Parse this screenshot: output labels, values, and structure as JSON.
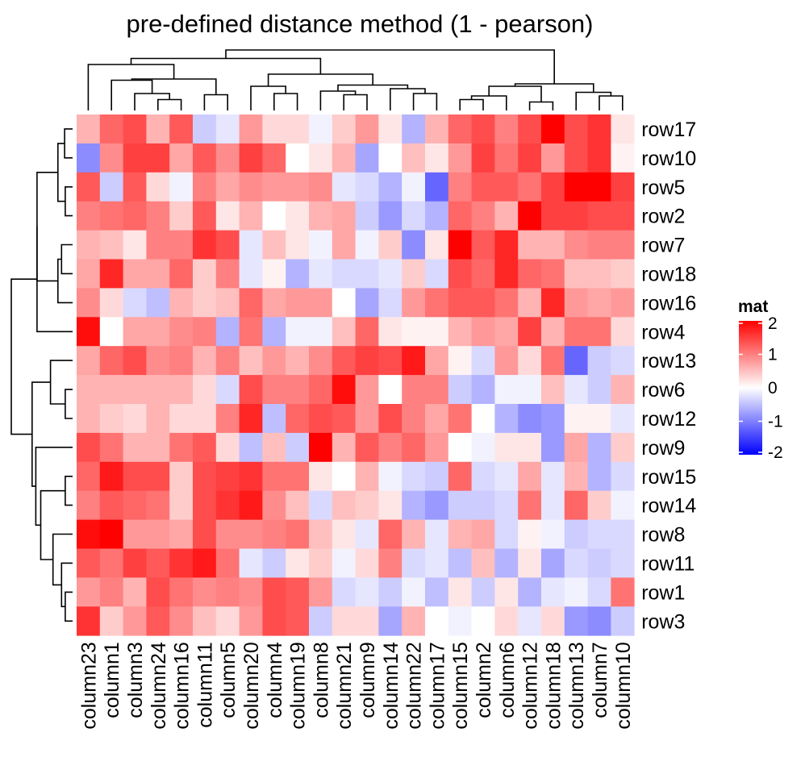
{
  "chart_data": {
    "type": "heatmap",
    "title": "pre-defined distance method (1 - pearson)",
    "rows": [
      "row17",
      "row10",
      "row5",
      "row2",
      "row7",
      "row18",
      "row16",
      "row4",
      "row13",
      "row6",
      "row12",
      "row9",
      "row15",
      "row14",
      "row8",
      "row11",
      "row1",
      "row3"
    ],
    "columns": [
      "column23",
      "column1",
      "column3",
      "column24",
      "column16",
      "column11",
      "column5",
      "column20",
      "column4",
      "column19",
      "column8",
      "column21",
      "column9",
      "column14",
      "column22",
      "column17",
      "column15",
      "column2",
      "column6",
      "column12",
      "column18",
      "column13",
      "column7",
      "column10"
    ],
    "values": [
      [
        0.6,
        1.2,
        1.4,
        0.6,
        1.3,
        -0.4,
        -0.2,
        0.8,
        0.3,
        0.3,
        -0.1,
        0.4,
        0.8,
        0.2,
        -0.6,
        0.6,
        1.2,
        1.4,
        1.0,
        1.4,
        2.0,
        1.4,
        1.6,
        0.2
      ],
      [
        -0.9,
        0.9,
        1.5,
        1.5,
        0.7,
        1.3,
        0.9,
        1.5,
        1.2,
        0.0,
        0.2,
        0.6,
        -0.7,
        0.0,
        0.5,
        0.2,
        0.8,
        1.5,
        1.1,
        1.5,
        0.8,
        1.4,
        1.6,
        0.1
      ],
      [
        1.3,
        -0.4,
        1.3,
        0.3,
        -0.1,
        1.0,
        0.7,
        0.9,
        0.8,
        0.8,
        0.9,
        -0.2,
        -0.3,
        -0.6,
        -0.1,
        -1.2,
        1.0,
        1.3,
        1.3,
        1.1,
        1.5,
        2.0,
        2.0,
        1.5
      ],
      [
        1.0,
        1.1,
        1.2,
        1.0,
        0.4,
        1.3,
        0.2,
        0.6,
        0.0,
        0.2,
        0.6,
        0.7,
        -0.4,
        -0.8,
        -0.3,
        -0.6,
        1.2,
        1.0,
        0.6,
        2.0,
        1.5,
        1.5,
        1.4,
        1.4
      ],
      [
        0.6,
        0.5,
        0.2,
        1.0,
        1.0,
        1.6,
        1.4,
        -0.2,
        0.5,
        0.2,
        -0.1,
        0.7,
        -0.1,
        0.4,
        -0.9,
        0.2,
        2.1,
        1.3,
        1.7,
        0.6,
        0.6,
        0.9,
        1.0,
        1.0
      ],
      [
        0.7,
        1.7,
        0.7,
        0.7,
        1.2,
        0.4,
        1.0,
        -0.2,
        0.1,
        -0.6,
        -0.2,
        -0.3,
        -0.3,
        -0.2,
        0.4,
        -0.3,
        1.4,
        1.2,
        1.7,
        1.2,
        1.1,
        0.5,
        0.5,
        0.4
      ],
      [
        0.9,
        0.3,
        -0.3,
        -0.5,
        0.6,
        0.4,
        0.5,
        1.2,
        0.7,
        0.8,
        0.8,
        0.0,
        -0.7,
        -0.3,
        0.8,
        1.1,
        1.3,
        1.3,
        1.1,
        0.6,
        1.7,
        0.8,
        0.7,
        0.8
      ],
      [
        1.9,
        0.0,
        0.7,
        0.7,
        0.9,
        1.0,
        -0.6,
        1.1,
        -0.6,
        -0.1,
        -0.1,
        0.5,
        1.2,
        0.2,
        0.1,
        0.1,
        0.6,
        0.8,
        0.7,
        1.5,
        0.6,
        1.1,
        1.1,
        0.3
      ],
      [
        0.7,
        1.2,
        1.4,
        0.9,
        1.0,
        0.6,
        1.0,
        0.5,
        0.8,
        0.6,
        0.9,
        1.3,
        1.5,
        1.4,
        1.8,
        0.7,
        0.1,
        -0.3,
        0.8,
        0.3,
        1.1,
        -1.2,
        -0.4,
        -0.3
      ],
      [
        0.6,
        0.6,
        0.6,
        0.6,
        0.6,
        0.3,
        -0.3,
        1.4,
        1.0,
        1.0,
        1.2,
        1.9,
        0.8,
        0.0,
        1.0,
        1.0,
        -0.4,
        -0.6,
        -0.1,
        -0.1,
        0.5,
        -0.2,
        -0.4,
        0.6
      ],
      [
        0.6,
        0.4,
        0.3,
        0.6,
        0.3,
        0.3,
        1.0,
        1.7,
        -0.5,
        1.2,
        1.4,
        1.3,
        0.8,
        1.4,
        1.0,
        0.7,
        1.1,
        0.0,
        -0.6,
        -0.9,
        -0.8,
        0.1,
        0.1,
        -0.2
      ],
      [
        1.4,
        1.1,
        0.6,
        0.6,
        1.1,
        1.3,
        0.3,
        -0.5,
        0.5,
        -0.4,
        2.0,
        0.6,
        1.3,
        1.0,
        1.2,
        0.8,
        0.0,
        -0.1,
        0.2,
        0.2,
        -0.8,
        0.7,
        -0.6,
        0.4
      ],
      [
        1.2,
        1.8,
        1.4,
        1.4,
        0.4,
        1.4,
        1.5,
        1.6,
        1.1,
        1.1,
        0.2,
        0.0,
        0.6,
        -0.1,
        -0.3,
        -0.4,
        1.2,
        -0.3,
        -0.2,
        0.7,
        -0.2,
        0.6,
        -0.6,
        -0.3
      ],
      [
        1.0,
        1.3,
        1.2,
        1.1,
        0.4,
        1.4,
        1.6,
        1.8,
        0.9,
        0.5,
        -0.3,
        0.5,
        0.4,
        0.2,
        -0.6,
        -0.8,
        -0.4,
        -0.4,
        -0.3,
        1.1,
        -0.2,
        1.2,
        0.4,
        -0.1
      ],
      [
        1.9,
        2.1,
        0.8,
        0.8,
        0.7,
        1.4,
        0.9,
        0.9,
        1.0,
        1.1,
        0.5,
        0.2,
        -0.2,
        1.2,
        0.6,
        -0.2,
        0.6,
        0.7,
        -0.3,
        0.1,
        -0.1,
        -0.4,
        -0.3,
        -0.3
      ],
      [
        1.3,
        1.1,
        1.5,
        1.3,
        1.6,
        1.8,
        1.1,
        -0.2,
        -0.4,
        0.2,
        0.4,
        -0.1,
        0.3,
        1.0,
        -0.3,
        -0.2,
        -0.5,
        0.5,
        -0.6,
        0.2,
        -0.7,
        -0.3,
        -0.4,
        -0.3
      ],
      [
        0.8,
        1.0,
        0.6,
        1.4,
        1.1,
        0.9,
        1.0,
        0.9,
        1.4,
        1.3,
        0.8,
        -0.3,
        -0.2,
        -0.4,
        -0.1,
        -0.5,
        0.2,
        -0.4,
        0.2,
        -0.6,
        -0.2,
        -0.1,
        -0.3,
        1.1
      ],
      [
        1.6,
        0.4,
        0.8,
        1.3,
        0.9,
        0.5,
        0.3,
        0.8,
        1.4,
        1.3,
        -0.4,
        0.3,
        0.3,
        -0.7,
        0.6,
        0.0,
        -0.1,
        0.0,
        0.3,
        -0.2,
        0.3,
        -0.8,
        -0.9,
        -0.4
      ]
    ],
    "legend": {
      "title": "mat",
      "ticks": [
        2,
        1,
        0,
        -1,
        -2
      ],
      "tick_labels": [
        "2",
        "1",
        "0",
        "-1",
        "-2"
      ],
      "range": [
        -2,
        2
      ],
      "colors": {
        "low": "#0000ff",
        "mid": "#ffffff",
        "high": "#ff0000"
      }
    },
    "row_dendrogram": true,
    "column_dendrogram": true
  }
}
